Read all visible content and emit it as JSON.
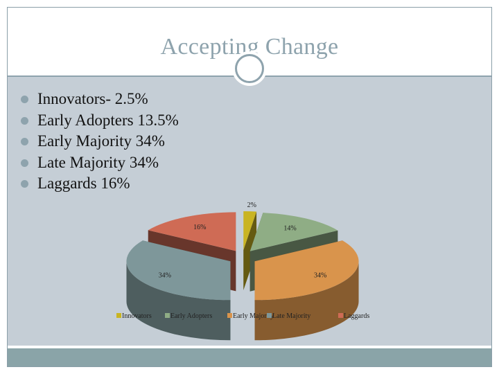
{
  "slide": {
    "title": "Accepting Change",
    "bullets": [
      "Innovators- 2.5%",
      "Early Adopters 13.5%",
      "Early Majority 34%",
      "Late Majority 34%",
      "Laggards 16%"
    ],
    "badge_icon": "circle-ring-icon"
  },
  "chart_data": {
    "type": "pie",
    "style": "3d-exploded",
    "categories": [
      "Innovators",
      "Early Adopters",
      "Early Majority",
      "Late Majority",
      "Laggards"
    ],
    "values": [
      2,
      14,
      34,
      34,
      16
    ],
    "data_labels": [
      "2%",
      "14%",
      "34%",
      "34%",
      "16%"
    ],
    "colors": [
      "#c9b422",
      "#8fad85",
      "#d9944c",
      "#7e979a",
      "#cf6b55"
    ],
    "legend_position": "bottom"
  },
  "colors": {
    "accent": "#8ea3ad",
    "content_background": "#c5ced6",
    "footer": "#8aa4a8"
  }
}
